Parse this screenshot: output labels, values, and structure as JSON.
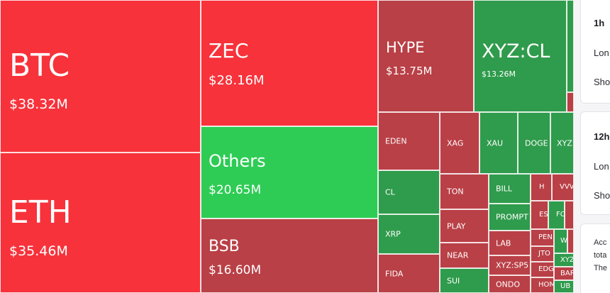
{
  "treemap": {
    "colors": {
      "bright_red": "#f7323b",
      "dark_red": "#b94046",
      "bright_green": "#2ecc55",
      "dark_green": "#2f9b4c"
    },
    "tiles": [
      {
        "id": "btc",
        "symbol": "BTC",
        "value": "$38.32M",
        "color": "bright_red",
        "size": "xl"
      },
      {
        "id": "eth",
        "symbol": "ETH",
        "value": "$35.46M",
        "color": "bright_red",
        "size": "xl2"
      },
      {
        "id": "zec",
        "symbol": "ZEC",
        "value": "$28.16M",
        "color": "bright_red",
        "size": "lg"
      },
      {
        "id": "others",
        "symbol": "Others",
        "value": "$20.65M",
        "color": "bright_green",
        "size": "md"
      },
      {
        "id": "bsb",
        "symbol": "BSB",
        "value": "$16.60M",
        "color": "dark_red",
        "size": "md"
      },
      {
        "id": "hype",
        "symbol": "HYPE",
        "value": "$13.75M",
        "color": "dark_red",
        "size": "md"
      },
      {
        "id": "xyz-cl",
        "symbol": "XYZ:CL",
        "value": "$13.26M",
        "color": "dark_green",
        "size": "md2"
      },
      {
        "id": "sliver-1",
        "symbol": "",
        "value": "",
        "color": "dark_green",
        "size": "xs"
      },
      {
        "id": "sliver-2",
        "symbol": "",
        "value": "",
        "color": "dark_red",
        "size": "xs"
      },
      {
        "id": "eden",
        "symbol": "EDEN",
        "value": "",
        "color": "dark_red",
        "size": "sm"
      },
      {
        "id": "xag",
        "symbol": "XAG",
        "value": "",
        "color": "dark_red",
        "size": "sm"
      },
      {
        "id": "xau",
        "symbol": "XAU",
        "value": "",
        "color": "dark_green",
        "size": "sm"
      },
      {
        "id": "doge",
        "symbol": "DOGE",
        "value": "",
        "color": "dark_green",
        "size": "sm"
      },
      {
        "id": "xyz-partial",
        "symbol": "XYZ",
        "value": "",
        "color": "dark_green",
        "size": "sm"
      },
      {
        "id": "cl",
        "symbol": "CL",
        "value": "",
        "color": "dark_green",
        "size": "sm"
      },
      {
        "id": "xrp",
        "symbol": "XRP",
        "value": "",
        "color": "dark_green",
        "size": "sm"
      },
      {
        "id": "fida",
        "symbol": "FIDA",
        "value": "",
        "color": "dark_red",
        "size": "sm"
      },
      {
        "id": "ton",
        "symbol": "TON",
        "value": "",
        "color": "dark_red",
        "size": "sm"
      },
      {
        "id": "play",
        "symbol": "PLAY",
        "value": "",
        "color": "dark_red",
        "size": "sm"
      },
      {
        "id": "near",
        "symbol": "NEAR",
        "value": "",
        "color": "dark_red",
        "size": "sm"
      },
      {
        "id": "sui",
        "symbol": "SUI",
        "value": "",
        "color": "dark_green",
        "size": "sm"
      },
      {
        "id": "bill",
        "symbol": "BILL",
        "value": "",
        "color": "dark_green",
        "size": "sm"
      },
      {
        "id": "prompt",
        "symbol": "PROMPT",
        "value": "",
        "color": "dark_green",
        "size": "sm"
      },
      {
        "id": "lab",
        "symbol": "LAB",
        "value": "",
        "color": "dark_red",
        "size": "sm"
      },
      {
        "id": "xyz-sp5",
        "symbol": "XYZ:SP5",
        "value": "",
        "color": "dark_red",
        "size": "sm"
      },
      {
        "id": "ondo",
        "symbol": "ONDO",
        "value": "",
        "color": "dark_red",
        "size": "sm"
      },
      {
        "id": "h",
        "symbol": "H",
        "value": "",
        "color": "dark_red",
        "size": "xs"
      },
      {
        "id": "vvv",
        "symbol": "VVV",
        "value": "",
        "color": "dark_red",
        "size": "xs"
      },
      {
        "id": "es",
        "symbol": "ES",
        "value": "",
        "color": "dark_red",
        "size": "xs"
      },
      {
        "id": "fo",
        "symbol": "FO",
        "value": "",
        "color": "dark_green",
        "size": "xs"
      },
      {
        "id": "sliver-3",
        "symbol": "",
        "value": "",
        "color": "dark_red",
        "size": "xs"
      },
      {
        "id": "pen",
        "symbol": "PEN",
        "value": "",
        "color": "dark_red",
        "size": "xs"
      },
      {
        "id": "w",
        "symbol": "W",
        "value": "",
        "color": "dark_green",
        "size": "xs"
      },
      {
        "id": "sliver-4",
        "symbol": "",
        "value": "",
        "color": "dark_red",
        "size": "xs"
      },
      {
        "id": "jto",
        "symbol": "JTO",
        "value": "",
        "color": "dark_red",
        "size": "xs"
      },
      {
        "id": "xyz-small",
        "symbol": "XYZ",
        "value": "",
        "color": "dark_green",
        "size": "xs"
      },
      {
        "id": "edg",
        "symbol": "EDG",
        "value": "",
        "color": "dark_red",
        "size": "xs"
      },
      {
        "id": "bar",
        "symbol": "BAR",
        "value": "",
        "color": "dark_red",
        "size": "xs"
      },
      {
        "id": "hom",
        "symbol": "HOM",
        "value": "",
        "color": "dark_red",
        "size": "xs"
      },
      {
        "id": "ub",
        "symbol": "UB",
        "value": "",
        "color": "dark_green",
        "size": "xs"
      }
    ]
  },
  "side_panel": {
    "card_1": {
      "period": "1h",
      "row_1": "Lon",
      "row_2": "Sho"
    },
    "card_2": {
      "period": "12h",
      "row_1": "Lon",
      "row_2": "Sho"
    },
    "card_3": {
      "line_1": "Acc",
      "line_2": "tota",
      "line_3": "The"
    }
  }
}
